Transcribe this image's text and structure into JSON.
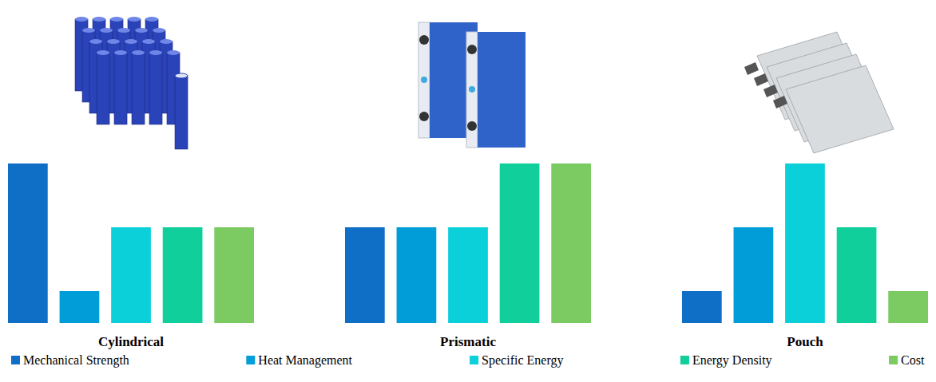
{
  "chart_data": {
    "type": "bar",
    "categories": [
      "Cylindrical",
      "Prismatic",
      "Pouch"
    ],
    "series": [
      {
        "name": "Mechanical Strength",
        "color": "#0f6fc6",
        "values": [
          5,
          3,
          1
        ]
      },
      {
        "name": "Heat Management",
        "color": "#009dd9",
        "values": [
          1,
          3,
          3
        ]
      },
      {
        "name": "Specific Energy",
        "color": "#0bd0d9",
        "values": [
          3,
          3,
          5
        ]
      },
      {
        "name": "Energy Density",
        "color": "#10cf9b",
        "values": [
          3,
          5,
          3
        ]
      },
      {
        "name": "Cost",
        "color": "#7cca62",
        "values": [
          3,
          5,
          1
        ]
      }
    ],
    "ylim": [
      0,
      5
    ],
    "tick_labels": false,
    "legend": "bottom"
  }
}
